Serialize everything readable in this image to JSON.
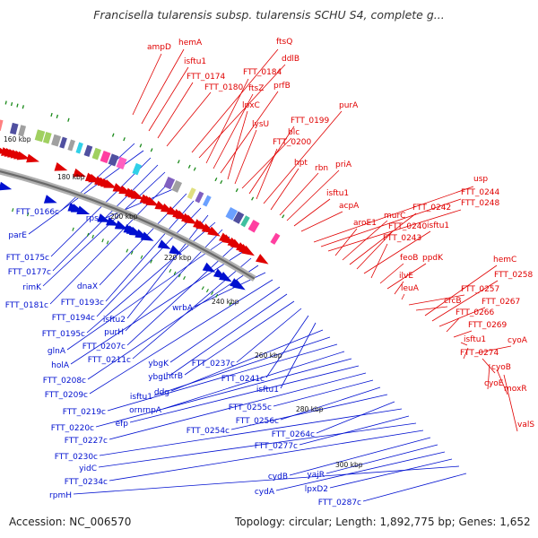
{
  "header": {
    "title": "Francisella tularensis subsp. tularensis SCHU S4, complete g..."
  },
  "footer": {
    "accession": "Accession: NC_006570",
    "topology": "Topology: circular; Length: 1,892,775 bp; Genes: 1,652"
  },
  "colors": {
    "forward": "#e00000",
    "reverse": "#0010d0",
    "backbone": "#888888",
    "gc": "#1a8a1a"
  },
  "ticks": [
    "160 kbp",
    "180 kbp",
    "200 kbp",
    "220 kbp",
    "240 kbp",
    "260 kbp",
    "280 kbp",
    "300 kbp"
  ],
  "forward_labels": [
    "ampD",
    "hemA",
    "isftu1",
    "FTT_0174",
    "FTT_0180",
    "ftsQ",
    "ddlB",
    "FTT_0184",
    "ftsZ",
    "prfB",
    "lpxC",
    "lysU",
    "blc",
    "FTT_0199",
    "FTT_0200",
    "purA",
    "hpt",
    "rbn",
    "priA",
    "isftu1",
    "acpA",
    "usp",
    "FTT_0244",
    "FTT_0248",
    "aroE1",
    "murC",
    "FTT_0242",
    "FTT_0240",
    "isftu1",
    "FTT_0243",
    "feoB",
    "ppdK",
    "ilvE",
    "leuA",
    "FTT_0257",
    "crcB",
    "hemC",
    "FTT_0258",
    "FTT_0267",
    "FTT_0266",
    "FTT_0269",
    "isftu1",
    "FTT_0274",
    "cyoA",
    "cyoB",
    "cyoE",
    "moxR",
    "valS"
  ],
  "reverse_labels": [
    "FTT_0166c",
    "parE",
    "FTT_0175c",
    "FTT_0177c",
    "rimK",
    "FTT_0181c",
    "rpsA",
    "dnaX",
    "FTT_0193c",
    "FTT_0194c",
    "isftu2",
    "FTT_0195c",
    "purH",
    "glnA",
    "FTT_0207c",
    "holA",
    "FTT_0211c",
    "FTT_0208c",
    "wrbA",
    "FTT_0209c",
    "ybgK",
    "ybgL",
    "htrB",
    "FTT_0237c",
    "FTT_0241c",
    "isftu1",
    "ddg",
    "isftu1",
    "FTT_0219c",
    "ornrnpA",
    "FTT_0220c",
    "efp",
    "FTT_0227c",
    "FTT_0255c",
    "FTT_0256c",
    "FTT_0254c",
    "FTT_0264c",
    "FTT_0230c",
    "FTT_0277c",
    "yidC",
    "FTT_0234c",
    "cydB",
    "yajR",
    "cydA",
    "lpxD2",
    "rpmH",
    "FTT_0287c"
  ]
}
